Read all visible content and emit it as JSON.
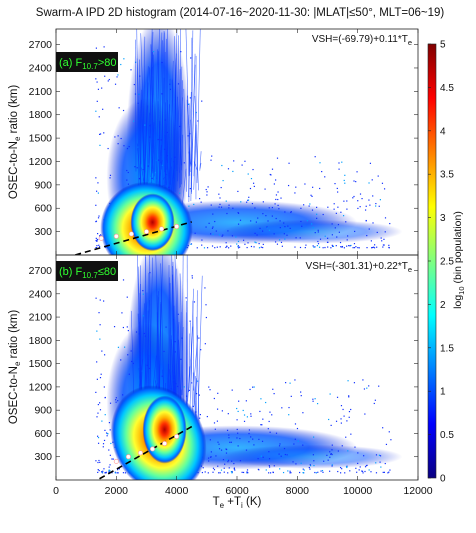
{
  "title": "Swarm-A IPD 2D histogram (2014-07-16~2020-11-30: |MLAT|≤50°, MLT=06~19)",
  "xlabel": {
    "base": "T",
    "sub1": "e",
    "mid": " +T",
    "sub2": "i",
    "tail": " (K)"
  },
  "ylabel": {
    "base": "OSEC-to-N",
    "sub": "e",
    "tail": " ratio (km)"
  },
  "colorbar": {
    "label": "log",
    "label_sub": "10",
    "label_tail": " (bin population)",
    "ticks": [
      "0",
      "0.5",
      "1",
      "1.5",
      "2",
      "2.5",
      "3",
      "3.5",
      "4",
      "4.5",
      "5"
    ],
    "colors": [
      "#0a0080",
      "#0000ff",
      "#0080ff",
      "#00ffff",
      "#80ff80",
      "#ffff00",
      "#ff8000",
      "#ff0000",
      "#800000"
    ]
  },
  "chart_data": [
    {
      "type": "heatmap",
      "panel": "upper",
      "tag": "(a) F",
      "tag_sub": "10.7",
      "tag_cond": ">80",
      "fit_label": "VSH=(-69.79)+0.11*T",
      "fit_sub": "e",
      "fit": {
        "intercept": -69.79,
        "slope": 0.11
      },
      "xlim": [
        0,
        12000
      ],
      "ylim": [
        0,
        2900
      ],
      "yticks": [
        "300",
        "600",
        "900",
        "1200",
        "1500",
        "1800",
        "2100",
        "2400",
        "2700"
      ],
      "peak": {
        "x": 3200,
        "y": 420
      },
      "mean_points": [
        [
          1500,
          215
        ],
        [
          2000,
          240
        ],
        [
          2500,
          270
        ],
        [
          3000,
          300
        ],
        [
          3500,
          335
        ],
        [
          4000,
          365
        ]
      ]
    },
    {
      "type": "heatmap",
      "panel": "lower",
      "tag": "(b) F",
      "tag_sub": "10.7",
      "tag_cond": "≤80",
      "fit_label": "VSH=(-301.31)+0.22*T",
      "fit_sub": "e",
      "fit": {
        "intercept": -301.31,
        "slope": 0.22
      },
      "xlim": [
        0,
        12000
      ],
      "ylim": [
        0,
        2900
      ],
      "xticks": [
        "0",
        "2000",
        "4000",
        "6000",
        "8000",
        "10000",
        "12000"
      ],
      "yticks": [
        "300",
        "600",
        "900",
        "1200",
        "1500",
        "1800",
        "2100",
        "2400",
        "2700"
      ],
      "peak": {
        "x": 3600,
        "y": 650
      },
      "mean_points": [
        [
          2000,
          240
        ],
        [
          2400,
          300
        ],
        [
          2800,
          350
        ],
        [
          3200,
          400
        ],
        [
          3600,
          470
        ],
        [
          4000,
          560
        ]
      ]
    }
  ]
}
